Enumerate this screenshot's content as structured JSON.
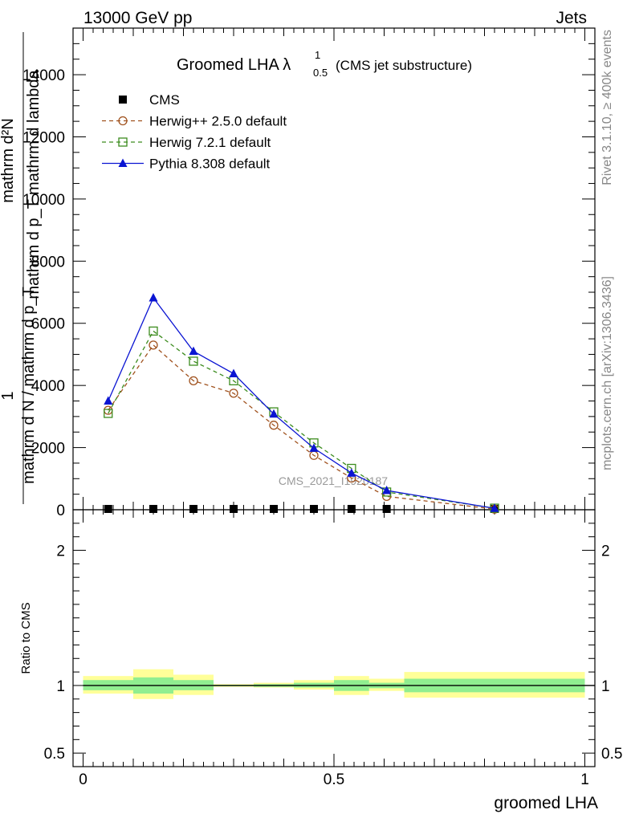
{
  "header": {
    "energy": "13000 GeV pp",
    "process": "Jets"
  },
  "sidebar": {
    "rivet": "Rivet 3.1.10, ≥ 400k events",
    "mcplots": "mcplots.cern.ch [arXiv:1306.3436]"
  },
  "watermark": "CMS_2021_I1920187",
  "chart_data": {
    "type": "line",
    "title": {
      "main": "Groomed LHA λ",
      "sup": "1",
      "sub": "0.5",
      "note": "(CMS jet substructure)"
    },
    "xlabel": "groomed LHA",
    "ylabel_main": {
      "numerator": "mathrm d²N",
      "denominator": "mathrm d p_T mathrm d lambda",
      "factor_numerator": "1",
      "factor_denominator": "mathrm d N / mathrm d p_T"
    },
    "ylabel_ratio": "Ratio to CMS",
    "xlim": [
      -0.02,
      1.02
    ],
    "ylim": [
      0,
      15500
    ],
    "ratio_ylim": [
      0.4,
      2.3
    ],
    "x_ticks": [
      {
        "v": 0,
        "label": "0"
      },
      {
        "v": 0.5,
        "label": "0.5"
      },
      {
        "v": 1,
        "label": "1"
      }
    ],
    "y_ticks": [
      {
        "v": 0,
        "label": "0"
      },
      {
        "v": 2000,
        "label": "2000"
      },
      {
        "v": 4000,
        "label": "4000"
      },
      {
        "v": 6000,
        "label": "6000"
      },
      {
        "v": 8000,
        "label": "8000"
      },
      {
        "v": 10000,
        "label": "10000"
      },
      {
        "v": 12000,
        "label": "12000"
      },
      {
        "v": 14000,
        "label": "14000"
      }
    ],
    "ratio_ticks": [
      {
        "v": 0.5,
        "label": "0.5"
      },
      {
        "v": 1,
        "label": "1"
      },
      {
        "v": 2,
        "label": "2"
      }
    ],
    "bins": [
      [
        0.0,
        0.1
      ],
      [
        0.1,
        0.18
      ],
      [
        0.18,
        0.26
      ],
      [
        0.26,
        0.34
      ],
      [
        0.34,
        0.42
      ],
      [
        0.42,
        0.5
      ],
      [
        0.5,
        0.57
      ],
      [
        0.57,
        0.64
      ],
      [
        0.64,
        1.0
      ]
    ],
    "series": [
      {
        "name": "CMS",
        "marker": "square-filled",
        "color": "#000000",
        "dash": "",
        "x": [
          0.05,
          0.14,
          0.22,
          0.3,
          0.38,
          0.46,
          0.535,
          0.605,
          0.82
        ],
        "y": [
          0,
          0,
          0,
          0,
          0,
          0,
          0,
          0,
          0
        ]
      },
      {
        "name": "Herwig++ 2.5.0 default",
        "marker": "circle-open",
        "color": "#a0521e",
        "dash": "5,4",
        "x": [
          0.05,
          0.14,
          0.22,
          0.3,
          0.38,
          0.46,
          0.535,
          0.605,
          0.82
        ],
        "y": [
          3200,
          5300,
          4150,
          3750,
          2720,
          1750,
          1020,
          430,
          20
        ]
      },
      {
        "name": "Herwig 7.2.1 default",
        "marker": "square-open",
        "color": "#3c8c1e",
        "dash": "5,4",
        "x": [
          0.05,
          0.14,
          0.22,
          0.3,
          0.38,
          0.46,
          0.535,
          0.605,
          0.82
        ],
        "y": [
          3100,
          5750,
          4780,
          4150,
          3150,
          2150,
          1330,
          570,
          50
        ]
      },
      {
        "name": "Pythia 8.308 default",
        "marker": "triangle-filled",
        "color": "#0a14d2",
        "dash": "",
        "x": [
          0.05,
          0.14,
          0.22,
          0.3,
          0.38,
          0.46,
          0.535,
          0.605,
          0.82
        ],
        "y": [
          3500,
          6820,
          5100,
          4380,
          3080,
          1980,
          1180,
          620,
          45
        ]
      }
    ],
    "ratio_bands": {
      "yellow_color": "#ffff99",
      "green_color": "#90ee90",
      "yellow": [
        [
          0.94,
          1.07
        ],
        [
          0.9,
          1.12
        ],
        [
          0.93,
          1.08
        ],
        [
          0.99,
          1.01
        ],
        [
          0.985,
          1.02
        ],
        [
          0.97,
          1.04
        ],
        [
          0.93,
          1.07
        ],
        [
          0.96,
          1.05
        ],
        [
          0.91,
          1.1
        ]
      ],
      "green": [
        [
          0.965,
          1.04
        ],
        [
          0.94,
          1.06
        ],
        [
          0.965,
          1.04
        ],
        [
          0.995,
          1.005
        ],
        [
          0.99,
          1.01
        ],
        [
          0.985,
          1.02
        ],
        [
          0.96,
          1.04
        ],
        [
          0.98,
          1.02
        ],
        [
          0.95,
          1.05
        ]
      ]
    },
    "legend_position": "top-left"
  }
}
